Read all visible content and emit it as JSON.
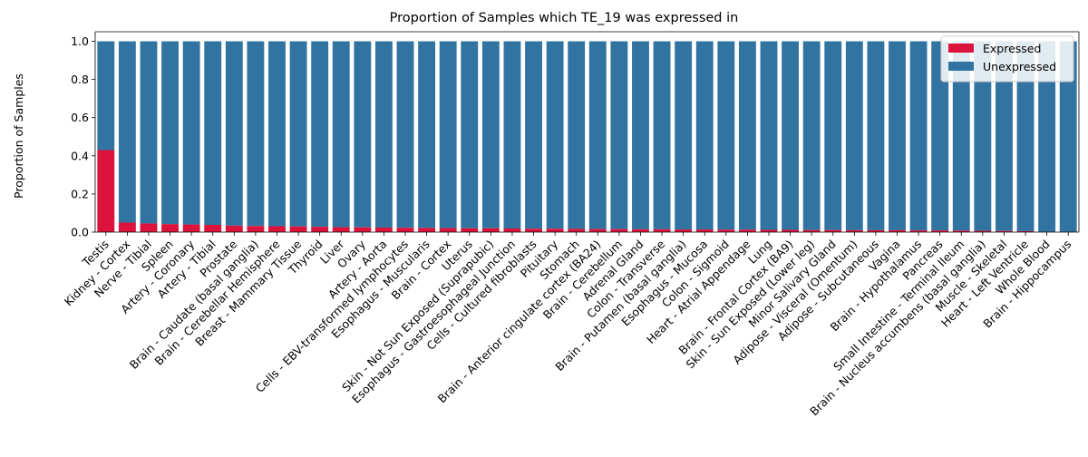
{
  "chart_data": {
    "type": "bar",
    "stacked": true,
    "title": "Proportion of Samples which TE_19 was expressed in",
    "xlabel": "",
    "ylabel": "Proportion of Samples",
    "ylim": [
      0,
      1.05
    ],
    "yticks": [
      "0.0",
      "0.2",
      "0.4",
      "0.6",
      "0.8",
      "1.0"
    ],
    "grid": false,
    "legend_position": "top-right",
    "categories": [
      "Testis",
      "Kidney - Cortex",
      "Nerve - Tibial",
      "Spleen",
      "Artery - Coronary",
      "Artery - Tibial",
      "Prostate",
      "Brain - Caudate (basal ganglia)",
      "Brain - Cerebellar Hemisphere",
      "Breast - Mammary Tissue",
      "Thyroid",
      "Liver",
      "Ovary",
      "Artery - Aorta",
      "Cells - EBV-transformed lymphocytes",
      "Esophagus - Muscularis",
      "Brain - Cortex",
      "Uterus",
      "Skin - Not Sun Exposed (Suprapubic)",
      "Esophagus - Gastroesophageal Junction",
      "Cells - Cultured fibroblasts",
      "Pituitary",
      "Stomach",
      "Brain - Anterior cingulate cortex (BA24)",
      "Brain - Cerebellum",
      "Adrenal Gland",
      "Colon - Transverse",
      "Brain - Putamen (basal ganglia)",
      "Esophagus - Mucosa",
      "Colon - Sigmoid",
      "Heart - Atrial Appendage",
      "Lung",
      "Brain - Frontal Cortex (BA9)",
      "Skin - Sun Exposed (Lower leg)",
      "Minor Salivary Gland",
      "Adipose - Visceral (Omentum)",
      "Adipose - Subcutaneous",
      "Vagina",
      "Brain - Hypothalamus",
      "Pancreas",
      "Small Intestine - Terminal Ileum",
      "Brain - Nucleus accumbens (basal ganglia)",
      "Muscle - Skeletal",
      "Heart - Left Ventricle",
      "Whole Blood",
      "Brain - Hippocampus"
    ],
    "series": [
      {
        "name": "Expressed",
        "color": "#dc143c",
        "values": [
          0.43,
          0.05,
          0.045,
          0.042,
          0.04,
          0.038,
          0.034,
          0.032,
          0.031,
          0.03,
          0.028,
          0.026,
          0.025,
          0.024,
          0.023,
          0.022,
          0.021,
          0.02,
          0.02,
          0.019,
          0.018,
          0.018,
          0.017,
          0.016,
          0.016,
          0.015,
          0.015,
          0.014,
          0.014,
          0.013,
          0.013,
          0.012,
          0.012,
          0.011,
          0.011,
          0.01,
          0.01,
          0.01,
          0.009,
          0.009,
          0.008,
          0.007,
          0.006,
          0.005,
          0.0,
          0.0
        ]
      },
      {
        "name": "Unexpressed",
        "color": "#3274a1",
        "values": [
          0.57,
          0.95,
          0.955,
          0.958,
          0.96,
          0.962,
          0.966,
          0.968,
          0.969,
          0.97,
          0.972,
          0.974,
          0.975,
          0.976,
          0.977,
          0.978,
          0.979,
          0.98,
          0.98,
          0.981,
          0.982,
          0.982,
          0.983,
          0.984,
          0.984,
          0.985,
          0.985,
          0.986,
          0.986,
          0.987,
          0.987,
          0.988,
          0.988,
          0.989,
          0.989,
          0.99,
          0.99,
          0.99,
          0.991,
          0.991,
          0.992,
          0.993,
          0.994,
          0.995,
          1.0,
          1.0
        ]
      }
    ]
  }
}
